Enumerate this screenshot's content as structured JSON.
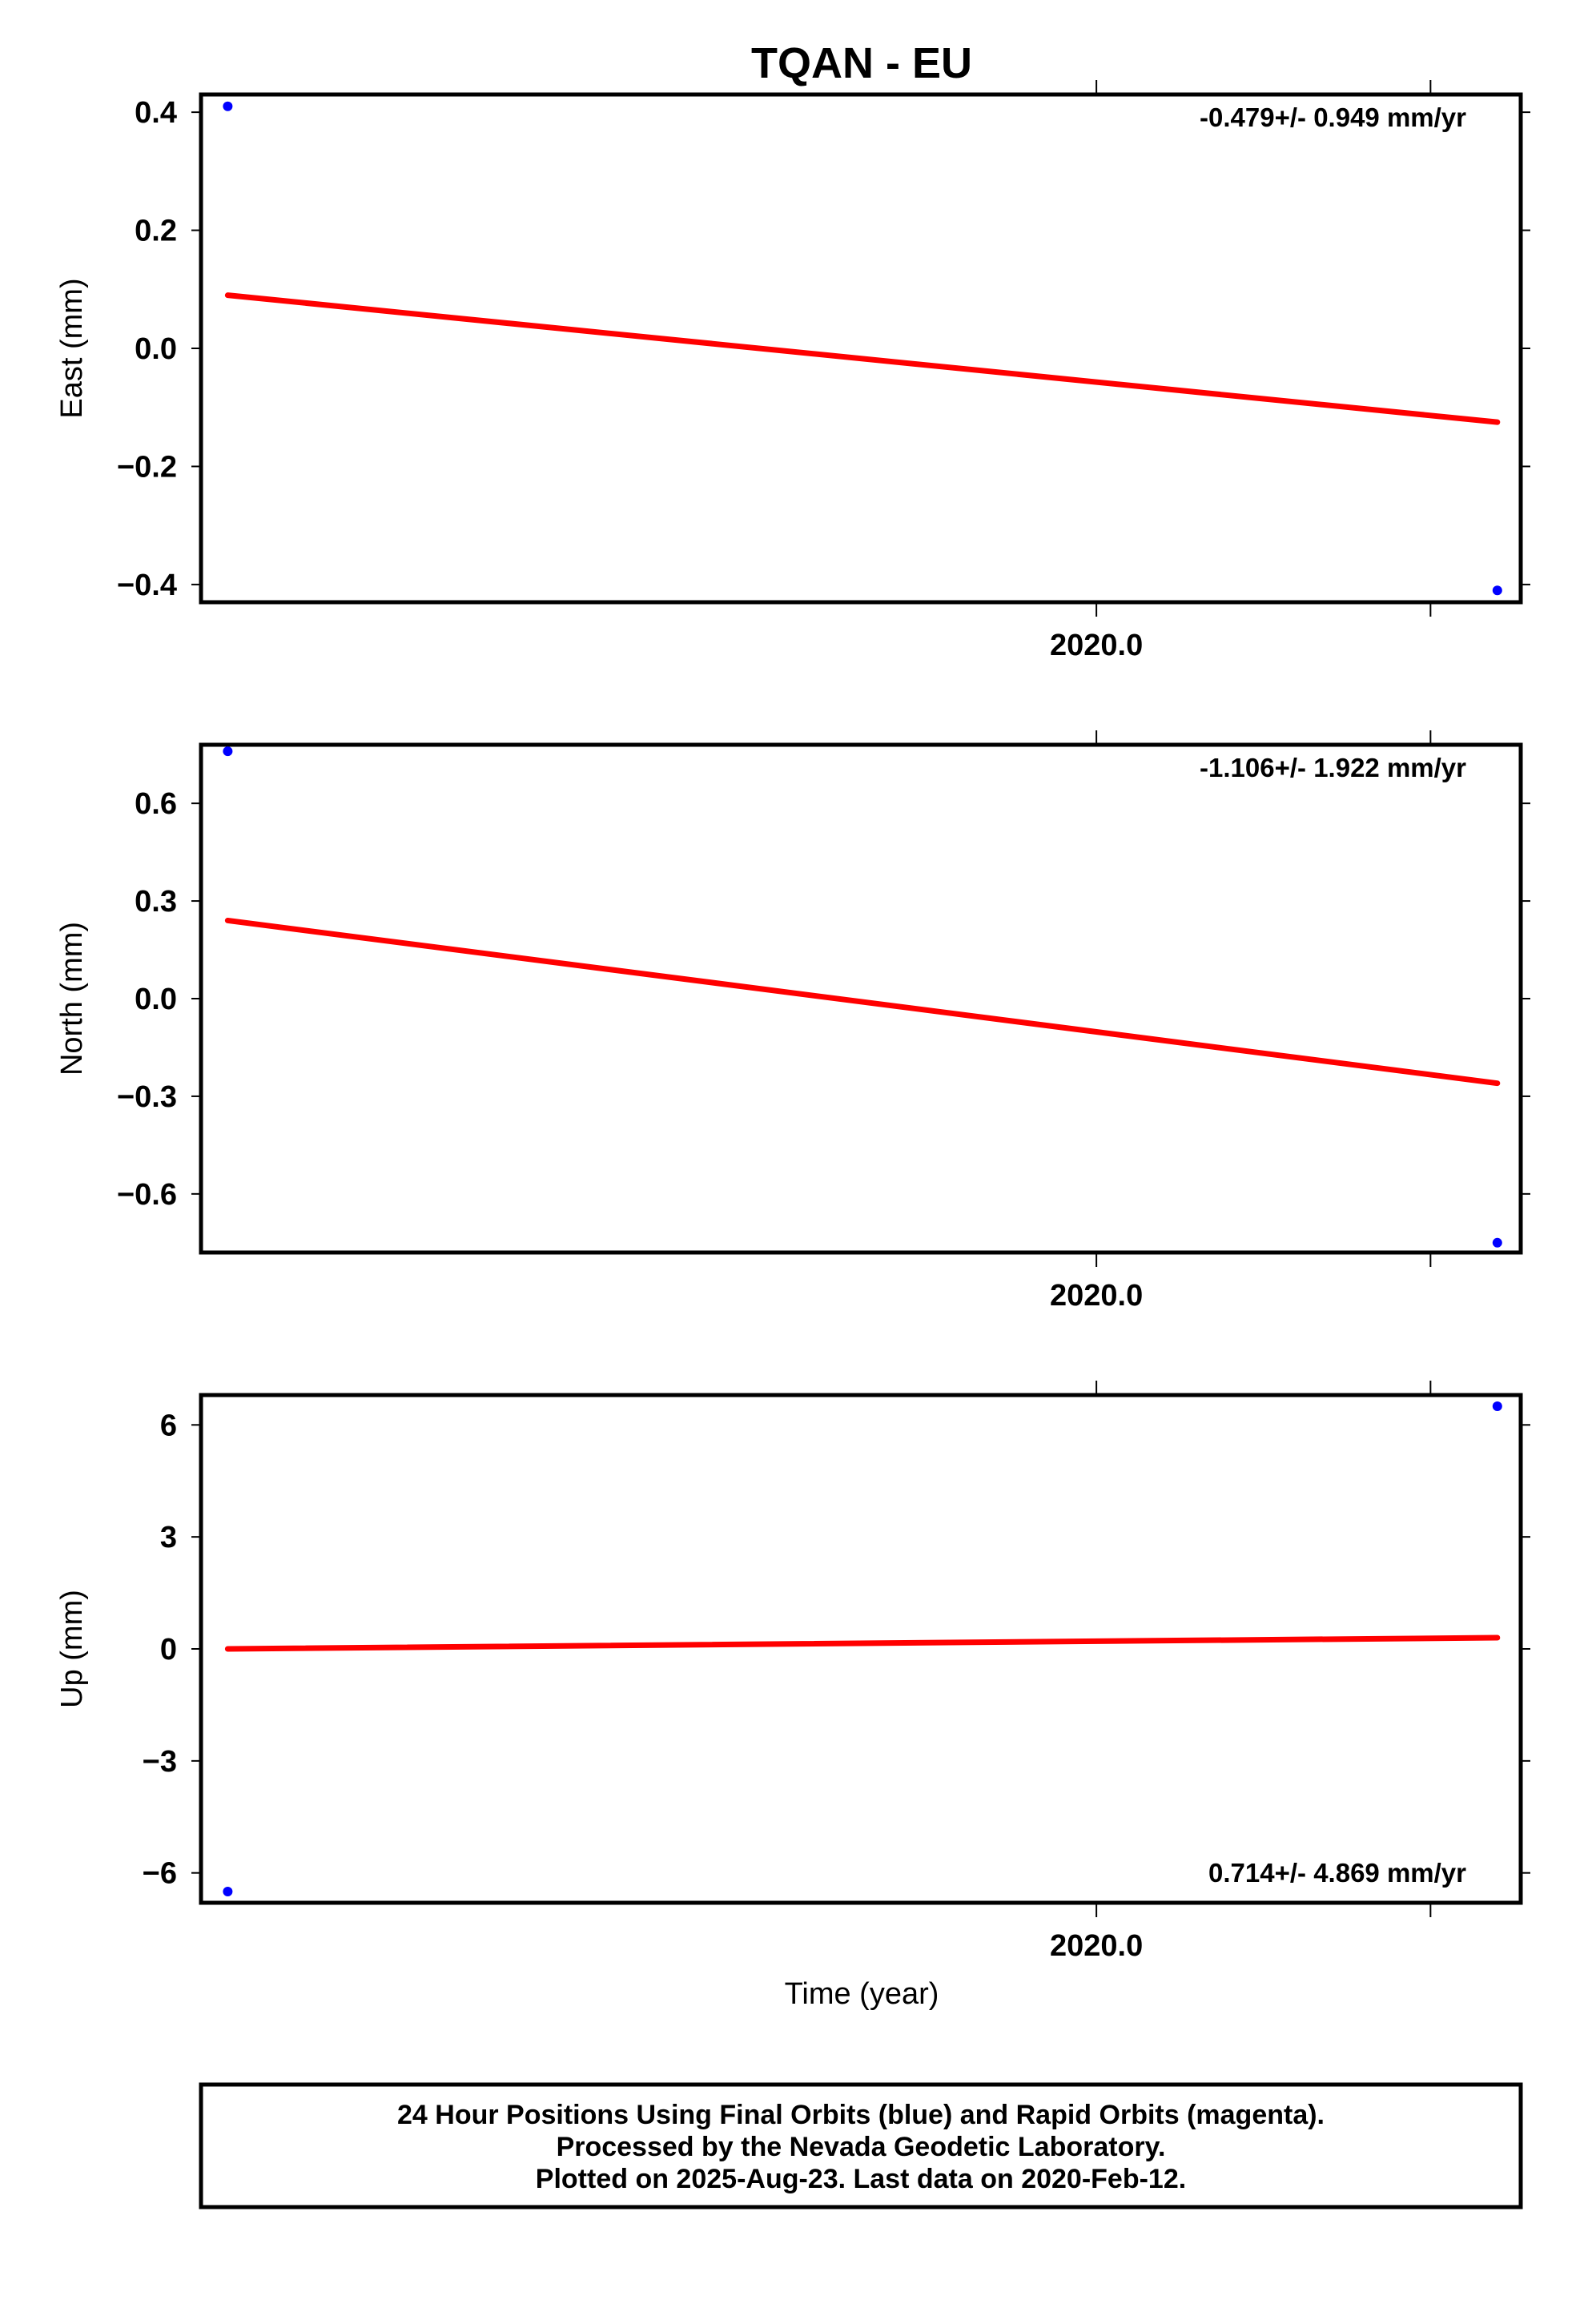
{
  "title": "TQAN - EU",
  "chart_data": [
    {
      "type": "scatter",
      "panel": "east",
      "ylabel": "East (mm)",
      "ylim": [
        -0.43,
        0.43
      ],
      "yticks": [
        0.4,
        0.2,
        0.0,
        -0.2,
        -0.4
      ],
      "ytick_labels": [
        "0.4",
        "0.2",
        "0.0",
        "−0.2",
        "−0.4"
      ],
      "xtick_label": "2020.0",
      "rate_label": "-0.479+/- 0.949 mm/yr",
      "rate_position": "top-right",
      "points": [
        {
          "t": 2019.74,
          "v": 0.41
        },
        {
          "t": 2020.12,
          "v": -0.41
        }
      ],
      "trend": {
        "t": [
          2019.74,
          2020.12
        ],
        "v": [
          0.09,
          -0.125
        ]
      },
      "point_color": "#0000ff",
      "trend_color": "#ff0000"
    },
    {
      "type": "scatter",
      "panel": "north",
      "ylabel": "North (mm)",
      "ylim": [
        -0.78,
        0.78
      ],
      "yticks": [
        0.6,
        0.3,
        0.0,
        -0.3,
        -0.6
      ],
      "ytick_labels": [
        "0.6",
        "0.3",
        "0.0",
        "−0.3",
        "−0.6"
      ],
      "xtick_label": "2020.0",
      "rate_label": "-1.106+/- 1.922 mm/yr",
      "rate_position": "top-right",
      "points": [
        {
          "t": 2019.74,
          "v": 0.76
        },
        {
          "t": 2020.12,
          "v": -0.75
        }
      ],
      "trend": {
        "t": [
          2019.74,
          2020.12
        ],
        "v": [
          0.24,
          -0.26
        ]
      },
      "point_color": "#0000ff",
      "trend_color": "#ff0000"
    },
    {
      "type": "scatter",
      "panel": "up",
      "ylabel": "Up (mm)",
      "ylim": [
        -6.8,
        6.8
      ],
      "yticks": [
        6,
        3,
        0,
        -3,
        -6
      ],
      "ytick_labels": [
        "6",
        "3",
        "0",
        "−3",
        "−6"
      ],
      "xtick_label": "2020.0",
      "xlabel": "Time (year)",
      "rate_label": "0.714+/- 4.869 mm/yr",
      "rate_position": "bottom-right",
      "points": [
        {
          "t": 2019.74,
          "v": -6.5
        },
        {
          "t": 2020.12,
          "v": 6.5
        }
      ],
      "trend": {
        "t": [
          2019.74,
          2020.12
        ],
        "v": [
          0.0,
          0.3
        ]
      },
      "point_color": "#0000ff",
      "trend_color": "#ff0000"
    }
  ],
  "x_axis": {
    "tmin": 2019.732,
    "tmax": 2020.127,
    "major_tick": 2020.0,
    "minor_tick": 2020.1
  },
  "caption": {
    "line1": "24 Hour Positions Using Final Orbits (blue) and Rapid Orbits (magenta).",
    "line2": "Processed by the Nevada Geodetic Laboratory.",
    "line3": "Plotted on 2025-Aug-23. Last data on 2020-Feb-12."
  }
}
